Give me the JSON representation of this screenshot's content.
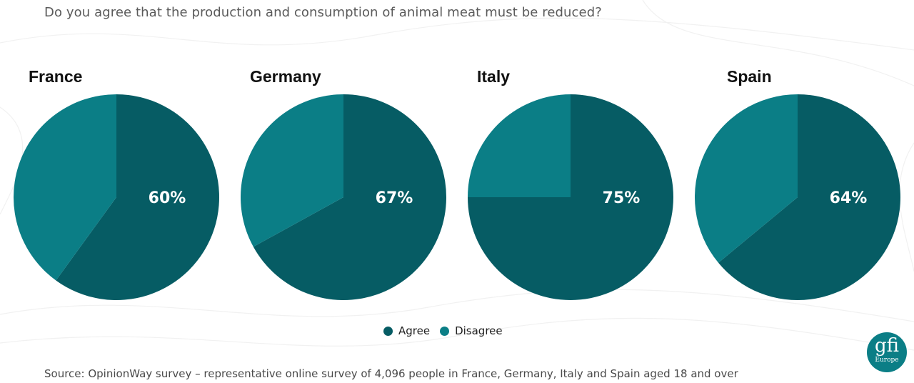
{
  "question": "Do you agree that the production and consumption of animal meat must be reduced?",
  "source": "Source: OpinionWay survey – representative online survey of 4,096 people in France, Germany, Italy and Spain aged 18 and over",
  "logo": {
    "main": "gfi",
    "sub": "Europe"
  },
  "colors": {
    "agree": "#065c64",
    "disagree": "#0b7e86"
  },
  "chart_data": {
    "type": "pie",
    "title": "Do you agree that the production and consumption of animal meat must be reduced?",
    "legend": [
      "Agree",
      "Disagree"
    ],
    "legend_position": "bottom",
    "countries": [
      {
        "name": "France",
        "agree": 60,
        "disagree": 40,
        "label": "60%"
      },
      {
        "name": "Germany",
        "agree": 67,
        "disagree": 33,
        "label": "67%"
      },
      {
        "name": "Italy",
        "agree": 75,
        "disagree": 25,
        "label": "75%"
      },
      {
        "name": "Spain",
        "agree": 64,
        "disagree": 36,
        "label": "64%"
      }
    ]
  }
}
